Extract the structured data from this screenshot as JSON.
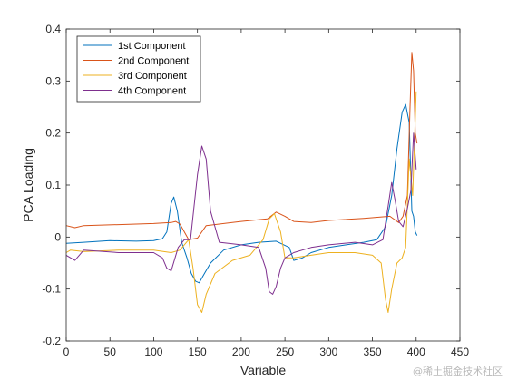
{
  "watermark": "@稀土掘金技术社区",
  "chart_data": {
    "type": "line",
    "xlabel": "Variable",
    "ylabel": "PCA Loading",
    "xlim": [
      0,
      450
    ],
    "ylim": [
      -0.2,
      0.4
    ],
    "xticks": [
      0,
      50,
      100,
      150,
      200,
      250,
      300,
      350,
      400,
      450
    ],
    "yticks": [
      -0.2,
      -0.1,
      0,
      0.1,
      0.2,
      0.3,
      0.4
    ],
    "yticklabels": [
      "-0.2",
      "-0.1",
      "0",
      "0.1",
      "0.2",
      "0.3",
      "0.4"
    ],
    "grid": false,
    "legend_position": "top-left",
    "series": [
      {
        "name": "1st Component",
        "color": "#0072BD",
        "x": [
          0,
          20,
          50,
          80,
          100,
          110,
          115,
          120,
          123,
          127,
          132,
          138,
          143,
          148,
          152,
          158,
          165,
          180,
          200,
          220,
          240,
          255,
          260,
          270,
          280,
          300,
          320,
          340,
          355,
          365,
          372,
          378,
          384,
          388,
          392,
          395,
          397,
          399,
          401
        ],
        "y": [
          -0.012,
          -0.01,
          -0.007,
          -0.008,
          -0.007,
          -0.003,
          0.01,
          0.065,
          0.077,
          0.05,
          -0.01,
          -0.04,
          -0.07,
          -0.085,
          -0.088,
          -0.07,
          -0.05,
          -0.025,
          -0.015,
          -0.01,
          -0.008,
          -0.02,
          -0.045,
          -0.04,
          -0.03,
          -0.02,
          -0.015,
          -0.01,
          -0.005,
          0.02,
          0.08,
          0.17,
          0.24,
          0.255,
          0.22,
          0.05,
          0.04,
          0.01,
          0.003
        ]
      },
      {
        "name": "2nd Component",
        "color": "#D95319",
        "x": [
          0,
          10,
          20,
          60,
          100,
          120,
          125,
          130,
          135,
          140,
          150,
          160,
          200,
          230,
          240,
          250,
          260,
          280,
          300,
          340,
          370,
          380,
          385,
          390,
          393,
          395,
          397,
          399,
          401
        ],
        "y": [
          0.022,
          0.018,
          0.022,
          0.024,
          0.026,
          0.028,
          0.03,
          0.025,
          0.01,
          -0.005,
          -0.002,
          0.022,
          0.03,
          0.035,
          0.048,
          0.04,
          0.03,
          0.028,
          0.032,
          0.036,
          0.04,
          0.028,
          0.04,
          0.08,
          0.25,
          0.355,
          0.32,
          0.2,
          0.18
        ]
      },
      {
        "name": "3rd Component",
        "color": "#EDB120",
        "x": [
          0,
          5,
          20,
          60,
          100,
          120,
          130,
          140,
          145,
          150,
          155,
          160,
          170,
          190,
          210,
          225,
          232,
          238,
          245,
          250,
          260,
          280,
          300,
          330,
          350,
          360,
          365,
          368,
          372,
          378,
          384,
          388,
          392,
          396,
          400
        ],
        "y": [
          -0.03,
          -0.025,
          -0.028,
          -0.025,
          -0.025,
          -0.03,
          -0.025,
          -0.005,
          -0.06,
          -0.13,
          -0.145,
          -0.11,
          -0.07,
          -0.045,
          -0.035,
          -0.005,
          0.035,
          0.045,
          0.01,
          -0.04,
          -0.04,
          -0.035,
          -0.03,
          -0.03,
          -0.035,
          -0.05,
          -0.12,
          -0.145,
          -0.1,
          -0.05,
          -0.04,
          -0.02,
          0.15,
          0.08,
          0.28
        ]
      },
      {
        "name": "4th Component",
        "color": "#7E2F8E",
        "x": [
          0,
          10,
          20,
          60,
          100,
          110,
          115,
          120,
          128,
          135,
          142,
          150,
          155,
          160,
          165,
          175,
          200,
          220,
          228,
          232,
          236,
          240,
          245,
          250,
          260,
          280,
          300,
          330,
          350,
          362,
          368,
          372,
          376,
          380,
          385,
          390,
          394,
          397,
          400
        ],
        "y": [
          -0.035,
          -0.045,
          -0.025,
          -0.03,
          -0.03,
          -0.04,
          -0.06,
          -0.065,
          -0.02,
          -0.005,
          -0.005,
          0.12,
          0.175,
          0.15,
          0.05,
          -0.01,
          -0.015,
          -0.02,
          -0.06,
          -0.105,
          -0.11,
          -0.095,
          -0.06,
          -0.04,
          -0.03,
          -0.02,
          -0.015,
          -0.01,
          -0.015,
          -0.005,
          0.06,
          0.105,
          0.07,
          0.03,
          0.02,
          0.055,
          0.09,
          0.2,
          0.13
        ]
      }
    ]
  }
}
